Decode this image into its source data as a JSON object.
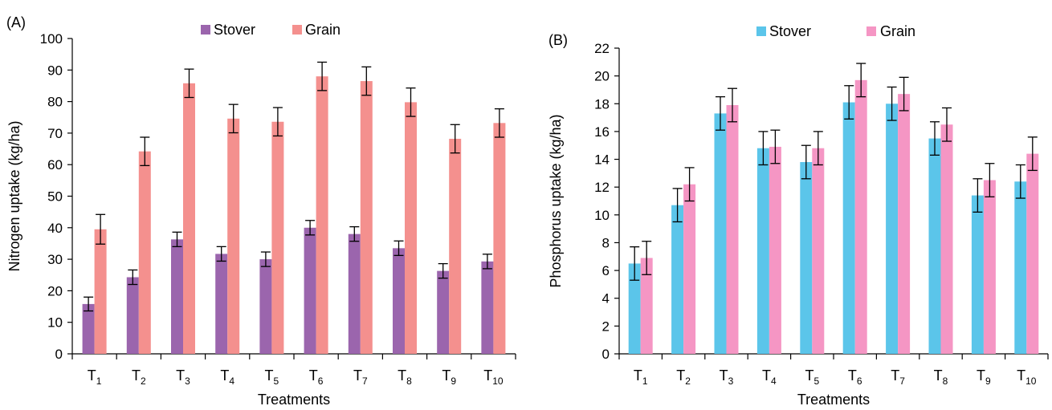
{
  "chart_data": [
    {
      "type": "bar",
      "panel_label": "(A)",
      "xlabel": "Treatments",
      "ylabel": "Nitrogen uptake (kg/ha)",
      "ylim": [
        0,
        100
      ],
      "yticks": [
        0,
        10,
        20,
        30,
        40,
        50,
        60,
        70,
        80,
        90,
        100
      ],
      "grid": false,
      "legend_position": "top-center",
      "categories": [
        {
          "base": "T",
          "sub": "1"
        },
        {
          "base": "T",
          "sub": "2"
        },
        {
          "base": "T",
          "sub": "3"
        },
        {
          "base": "T",
          "sub": "4"
        },
        {
          "base": "T",
          "sub": "5"
        },
        {
          "base": "T",
          "sub": "6"
        },
        {
          "base": "T",
          "sub": "7"
        },
        {
          "base": "T",
          "sub": "8"
        },
        {
          "base": "T",
          "sub": "9"
        },
        {
          "base": "T",
          "sub": "10"
        }
      ],
      "series": [
        {
          "name": "Stover",
          "color": "#9b65ad",
          "values": [
            15.8,
            24.3,
            36.3,
            31.7,
            30.0,
            40.0,
            38.0,
            33.5,
            26.3,
            29.3
          ],
          "errors": [
            2.2,
            2.3,
            2.3,
            2.3,
            2.3,
            2.3,
            2.3,
            2.3,
            2.3,
            2.3
          ]
        },
        {
          "name": "Grain",
          "color": "#f4908e",
          "values": [
            39.5,
            64.2,
            85.8,
            74.6,
            73.6,
            88.0,
            86.5,
            79.8,
            68.2,
            73.2
          ],
          "errors": [
            4.7,
            4.5,
            4.5,
            4.5,
            4.5,
            4.5,
            4.5,
            4.5,
            4.5,
            4.5
          ]
        }
      ]
    },
    {
      "type": "bar",
      "panel_label": "(B)",
      "xlabel": "Treatments",
      "ylabel": "Phosphorus uptake (kg/ha)",
      "ylim": [
        0,
        22
      ],
      "yticks": [
        0,
        2,
        4,
        6,
        8,
        10,
        12,
        14,
        16,
        18,
        20,
        22
      ],
      "grid": false,
      "legend_position": "top-center",
      "categories": [
        {
          "base": "T",
          "sub": "1"
        },
        {
          "base": "T",
          "sub": "2"
        },
        {
          "base": "T",
          "sub": "3"
        },
        {
          "base": "T",
          "sub": "4"
        },
        {
          "base": "T",
          "sub": "5"
        },
        {
          "base": "T",
          "sub": "6"
        },
        {
          "base": "T",
          "sub": "7"
        },
        {
          "base": "T",
          "sub": "8"
        },
        {
          "base": "T",
          "sub": "9"
        },
        {
          "base": "T",
          "sub": "10"
        }
      ],
      "series": [
        {
          "name": "Stover",
          "color": "#5bc5ea",
          "values": [
            6.5,
            10.7,
            17.3,
            14.8,
            13.8,
            18.1,
            18.0,
            15.5,
            11.4,
            12.4
          ],
          "errors": [
            1.2,
            1.2,
            1.2,
            1.2,
            1.2,
            1.2,
            1.2,
            1.2,
            1.2,
            1.2
          ]
        },
        {
          "name": "Grain",
          "color": "#f596c4",
          "values": [
            6.9,
            12.2,
            17.9,
            14.9,
            14.8,
            19.7,
            18.7,
            16.5,
            12.5,
            14.4
          ],
          "errors": [
            1.2,
            1.2,
            1.2,
            1.2,
            1.2,
            1.2,
            1.2,
            1.2,
            1.2,
            1.2
          ]
        }
      ]
    }
  ]
}
